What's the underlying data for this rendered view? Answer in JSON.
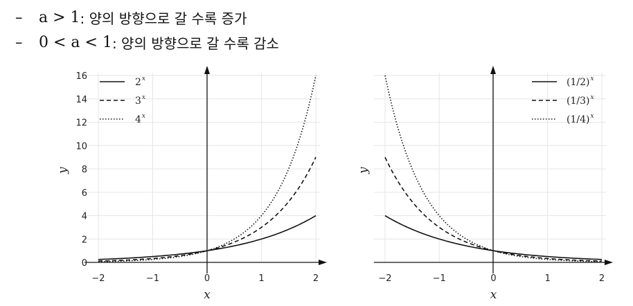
{
  "bullets": [
    {
      "dash": "–",
      "math": "a > 1",
      "desc": ": 양의 방향으로 갈 수록 증가"
    },
    {
      "dash": "–",
      "math": "0 < a < 1",
      "desc": ": 양의 방향으로 갈 수록 감소"
    }
  ],
  "chart_data": [
    {
      "type": "line",
      "xlabel": "x",
      "ylabel": "y",
      "xlim": [
        -2,
        2
      ],
      "ylim": [
        0,
        16
      ],
      "xticks": [
        "−2",
        "−1",
        "0",
        "1",
        "2"
      ],
      "yticks": [
        "0",
        "2",
        "4",
        "6",
        "8",
        "10",
        "12",
        "14",
        "16"
      ],
      "grid": true,
      "legend_position": "top-left",
      "series": [
        {
          "name": "2",
          "name_superscript": "x",
          "base": 2,
          "style": "solid"
        },
        {
          "name": "3",
          "name_superscript": "x",
          "base": 3,
          "style": "dashed"
        },
        {
          "name": "4",
          "name_superscript": "x",
          "base": 4,
          "style": "dotted"
        }
      ]
    },
    {
      "type": "line",
      "xlabel": "x",
      "ylabel": "y",
      "xlim": [
        -2,
        2
      ],
      "ylim": [
        0,
        16
      ],
      "xticks": [
        "−2",
        "−1",
        "0",
        "1",
        "2"
      ],
      "yticks": [],
      "grid": true,
      "legend_position": "top-right",
      "series": [
        {
          "name": "(1/2)",
          "name_superscript": "x",
          "base": 0.5,
          "style": "solid"
        },
        {
          "name": "(1/3)",
          "name_superscript": "x",
          "base": 0.3333333333,
          "style": "dashed"
        },
        {
          "name": "(1/4)",
          "name_superscript": "x",
          "base": 0.25,
          "style": "dotted"
        }
      ]
    }
  ]
}
